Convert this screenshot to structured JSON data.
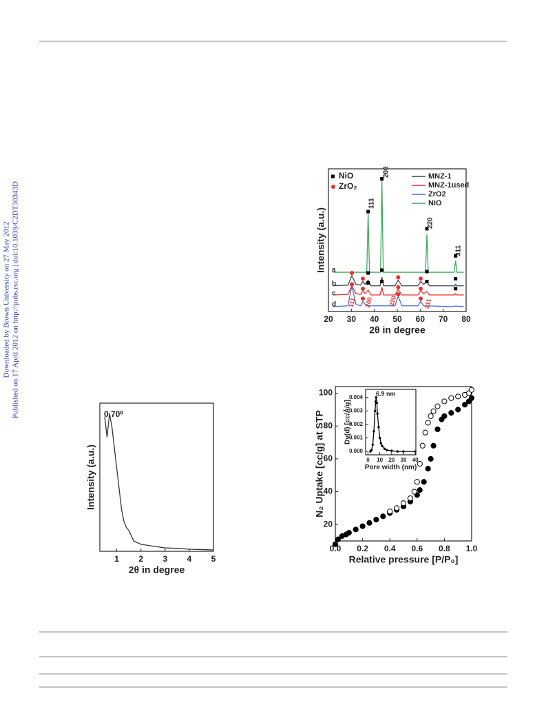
{
  "sidebar": [
    "Downloaded by Brown University on 27 May 2012",
    "Published on 17 April 2012 on http://pubs.rsc.org | doi:10.1039/C2DT30343D"
  ],
  "chart_data": [
    {
      "type": "line",
      "x_label": "2θ in degree",
      "y_label": "Intensity (a.u.)",
      "xlim": [
        20,
        80
      ],
      "xticks": [
        20,
        30,
        40,
        50,
        60,
        70,
        80
      ],
      "ylim": [
        0,
        100
      ],
      "series": [
        {
          "name": "MNZ-1",
          "color": "#3b4654",
          "x": [
            22,
            28.5,
            30.2,
            32,
            34,
            35,
            36,
            37.3,
            38.5,
            42.5,
            43.3,
            44,
            49,
            50.4,
            52,
            59,
            60.2,
            61.5,
            62.9,
            64,
            75,
            75.4,
            76,
            79
          ],
          "values": [
            18,
            18.5,
            25,
            19,
            18.5,
            21,
            19,
            22,
            18,
            18,
            24,
            18,
            18,
            22,
            18,
            18,
            21,
            19,
            21,
            18,
            18,
            19,
            18,
            18
          ]
        },
        {
          "name": "MNZ-1used",
          "color": "#e8322c",
          "x": [
            22,
            28.5,
            30.2,
            32,
            34,
            35,
            36,
            37.3,
            38.5,
            42.5,
            43.3,
            44,
            49,
            50.4,
            52,
            59,
            60.2,
            61.5,
            62.9,
            64,
            75,
            75.4,
            76,
            79
          ],
          "values": [
            11.6,
            12,
            18,
            12.5,
            12,
            14.5,
            12.5,
            15,
            11.6,
            11.6,
            17,
            11.6,
            11.6,
            15.5,
            11.6,
            11.6,
            14.5,
            12.5,
            14,
            11.6,
            11.6,
            12.5,
            11.6,
            11.6
          ]
        },
        {
          "name": "ZrO2",
          "color": "#4a6fd0",
          "x": [
            22,
            28.5,
            30.2,
            32,
            34,
            35,
            36.5,
            49,
            50.4,
            52,
            59,
            60.2,
            61.5,
            74,
            75,
            79
          ],
          "values": [
            3.4,
            4,
            17.9,
            5,
            4,
            7,
            4,
            4,
            10.6,
            4,
            4,
            7.2,
            4,
            3.4,
            3.8,
            3.4
          ]
        },
        {
          "name": "NiO",
          "color": "#3daa5c",
          "x": [
            22,
            36.7,
            37.3,
            37.9,
            42.7,
            43.3,
            43.9,
            62.3,
            62.9,
            63.5,
            74.8,
            75.4,
            76,
            79
          ],
          "values": [
            27.5,
            27.5,
            68.6,
            27.5,
            27.5,
            91.8,
            27.5,
            27.5,
            54.1,
            27.5,
            27.5,
            35.7,
            27.5,
            27.5
          ]
        }
      ],
      "markers": [
        {
          "name": "NiO",
          "symbol": "square",
          "color": "#000000",
          "x": [
            37.3,
            43.3,
            62.9,
            75.4,
            37.3,
            43.3,
            62.9,
            75.4,
            37.3,
            43.3,
            62.9,
            75.4
          ],
          "values": [
            70,
            93,
            58,
            39,
            27,
            29,
            28,
            23,
            20,
            21,
            21,
            16
          ]
        },
        {
          "name": "ZrO₂",
          "symbol": "circle",
          "color": "#e8322c",
          "x": [
            30.2,
            35,
            50.4,
            60.2,
            30.2,
            35,
            50.4,
            60.2,
            30.2,
            35,
            50.4,
            60.2
          ],
          "values": [
            27,
            23,
            24,
            23,
            19,
            16,
            17,
            16,
            19,
            9,
            12,
            9
          ]
        }
      ],
      "peak_labels": [
        "111",
        "200",
        "220",
        "311"
      ],
      "zro2_peak_labels": [
        "111",
        "200",
        "220",
        "311"
      ],
      "curve_labels": [
        "a",
        "b",
        "c",
        "d"
      ]
    },
    {
      "type": "line",
      "x_label": "2θ in degree",
      "y_label": "Intensity (a.u.)",
      "xlim": [
        0.3,
        5
      ],
      "xticks": [
        1,
        2,
        3,
        4,
        5
      ],
      "ylim": [
        0,
        100
      ],
      "series": [
        {
          "color": "#333333",
          "x": [
            0.5,
            0.6,
            0.7,
            0.8,
            0.9,
            1.0,
            1.1,
            1.2,
            1.3,
            1.4,
            1.5,
            1.7,
            2.0,
            2.5,
            3.0,
            3.5,
            4.0,
            4.5,
            5.0
          ],
          "values": [
            90.7,
            77,
            93,
            84,
            70,
            56,
            42,
            28,
            20,
            16,
            14,
            7,
            4.7,
            3.5,
            2.3,
            2.0,
            1.4,
            1.2,
            0.9
          ]
        }
      ],
      "annotation": "0.70⁰"
    },
    {
      "type": "scatter",
      "x_label": "Relative pressure [P/P₀]",
      "y_label": "N₂ Uptake [cc/g] at STP",
      "xlim": [
        0,
        1
      ],
      "xticks": [
        {
          "value": 0,
          "label": "0.0"
        },
        0.2,
        0.4,
        0.6,
        0.8,
        {
          "value": 1,
          "label": "1.0"
        }
      ],
      "ylim": [
        10,
        104
      ],
      "yticks": [
        20,
        40,
        60,
        80,
        100
      ],
      "series": [
        {
          "marker": "filled",
          "color": "#000000",
          "x": [
            0,
            0.02,
            0.05,
            0.08,
            0.1,
            0.15,
            0.2,
            0.25,
            0.3,
            0.35,
            0.4,
            0.45,
            0.5,
            0.55,
            0.6,
            0.62,
            0.65,
            0.68,
            0.7,
            0.72,
            0.75,
            0.78,
            0.8,
            0.85,
            0.9,
            0.95,
            0.98,
            1.0
          ],
          "values": [
            8,
            11,
            13,
            14,
            15,
            17,
            19,
            21,
            23,
            25,
            27,
            29,
            31,
            34,
            38,
            41,
            46,
            54,
            60,
            68,
            78,
            84,
            86,
            88,
            90,
            93,
            95,
            97
          ]
        },
        {
          "marker": "open",
          "color": "#000000",
          "x": [
            0.4,
            0.45,
            0.5,
            0.55,
            0.58,
            0.6,
            0.62,
            0.64,
            0.66,
            0.68,
            0.7,
            0.72,
            0.75,
            0.8,
            0.85,
            0.9,
            0.95,
            0.98,
            1.0
          ],
          "values": [
            28,
            30,
            33,
            36,
            40,
            46,
            57,
            68,
            76,
            82,
            86,
            89,
            92,
            95,
            97,
            98,
            99,
            100,
            102
          ]
        }
      ],
      "inset": {
        "type": "line",
        "x_label": "Pore width (nm)",
        "y_label": "Dv(d) [cc/Å/g]",
        "xlim": [
          -2,
          40.5
        ],
        "xticks": [
          0,
          10,
          20,
          30,
          40
        ],
        "ylim": [
          -0.00025,
          0.0046
        ],
        "yticks": [
          {
            "value": 0,
            "label": "0.000"
          },
          {
            "value": 0.001,
            "label": "0.001"
          },
          {
            "value": 0.002,
            "label": "0.002"
          },
          {
            "value": 0.003,
            "label": "0.003"
          },
          {
            "value": 0.004,
            "label": "0.004"
          }
        ],
        "series": [
          {
            "marker": "small",
            "color": "#000000",
            "x": [
              2,
              3,
              4,
              5,
              6,
              6.5,
              6.9,
              7.5,
              8,
              9,
              10,
              11,
              12,
              14,
              16,
              20,
              25,
              30,
              40
            ],
            "values": [
              0,
              0.0001,
              0.0005,
              0.0015,
              0.003,
              0.0037,
              0.004,
              0.0036,
              0.0028,
              0.0018,
              0.001,
              0.0006,
              0.0004,
              0.0002,
              0.0001,
              5e-05,
              0,
              0,
              0
            ]
          }
        ],
        "annotation": "6.9 nm"
      }
    }
  ]
}
